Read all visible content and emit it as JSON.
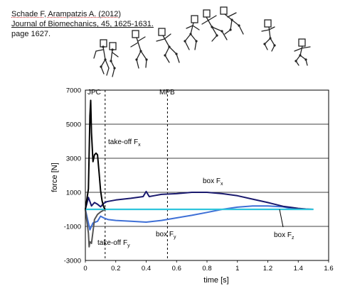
{
  "citation": {
    "line1": "Schade F, Arampatzis A. (2012)",
    "line2": "Journal of Biomechanics, 45, 1625-1631.",
    "line3": "page 1627."
  },
  "figure_caption": "",
  "chart_data": {
    "type": "line",
    "title": "",
    "xlabel": "time [s]",
    "ylabel": "force [N]",
    "xlim": [
      0,
      1.6
    ],
    "ylim": [
      -3000,
      7000
    ],
    "x_ticks": [
      "0",
      "0.2",
      "0.4",
      "0.6",
      "0.8",
      "1",
      "1.2",
      "1.4",
      "1.6"
    ],
    "y_ticks": [
      "-3000",
      "-1000",
      "1000",
      "3000",
      "5000",
      "7000"
    ],
    "grid": "horizontal",
    "vertical_markers": [
      {
        "label": "JPC",
        "x": 0.13
      },
      {
        "label": "MPB",
        "x": 0.54
      }
    ],
    "annotations": {
      "takeoff_fx": "take-off F",
      "takeoff_fy": "take-off F",
      "box_fx": "box F",
      "box_fy": "box F",
      "box_fz": "box F",
      "sub_x": "x",
      "sub_y": "y",
      "sub_z": "z"
    },
    "series": [
      {
        "color": "#000000",
        "x": [
          0.0,
          0.02,
          0.03,
          0.035,
          0.04,
          0.05,
          0.06,
          0.07,
          0.08,
          0.09,
          0.1,
          0.11,
          0.12,
          0.13
        ],
        "y": [
          0,
          1200,
          5500,
          6400,
          4500,
          2800,
          3200,
          3300,
          3200,
          2200,
          1100,
          500,
          150,
          0
        ]
      },
      {
        "color": "#555555",
        "x": [
          0.0,
          0.02,
          0.025,
          0.03,
          0.04,
          0.05,
          0.06,
          0.08,
          0.1,
          0.12,
          0.13
        ],
        "y": [
          0,
          -1400,
          -2200,
          -1900,
          -2000,
          -1300,
          -600,
          -300,
          -150,
          -50,
          0
        ]
      },
      {
        "color": "#1a1a6e",
        "x": [
          0.0,
          0.02,
          0.04,
          0.06,
          0.08,
          0.1,
          0.12,
          0.14,
          0.2,
          0.3,
          0.38,
          0.4,
          0.42,
          0.45,
          0.5,
          0.6,
          0.7,
          0.8,
          0.9,
          1.0,
          1.1,
          1.2,
          1.3,
          1.35,
          1.4,
          1.45,
          1.5
        ],
        "y": [
          0,
          700,
          200,
          400,
          300,
          150,
          350,
          450,
          550,
          650,
          750,
          1050,
          750,
          800,
          880,
          920,
          1000,
          1000,
          920,
          800,
          600,
          400,
          180,
          120,
          60,
          20,
          0
        ]
      },
      {
        "color": "#3e6fd6",
        "x": [
          0.0,
          0.03,
          0.05,
          0.08,
          0.1,
          0.12,
          0.15,
          0.2,
          0.3,
          0.4,
          0.5,
          0.6,
          0.7,
          0.8,
          0.9,
          1.0,
          1.1,
          1.2,
          1.3,
          1.35,
          1.4
        ],
        "y": [
          0,
          -1200,
          -800,
          -700,
          -400,
          -500,
          -600,
          -650,
          -700,
          -750,
          -650,
          -500,
          -350,
          -180,
          0,
          130,
          200,
          200,
          150,
          60,
          0
        ]
      },
      {
        "color": "#2fc4dc",
        "x": [
          0.0,
          0.2,
          0.4,
          0.6,
          0.8,
          1.0,
          1.2,
          1.4,
          1.5
        ],
        "y": [
          0,
          0,
          0,
          0,
          0,
          0,
          0,
          0,
          0
        ]
      }
    ]
  }
}
